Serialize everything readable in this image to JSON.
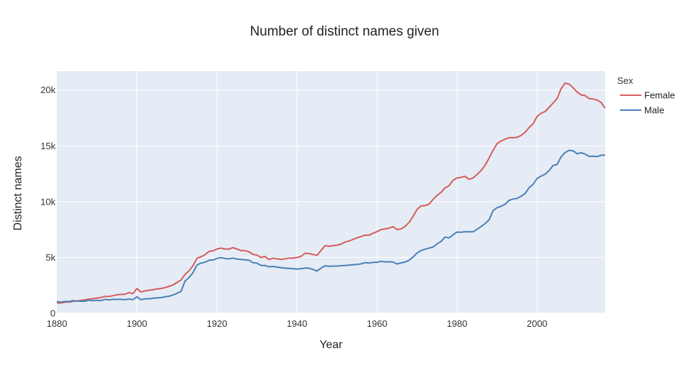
{
  "chart_data": {
    "type": "line",
    "title": "Number of distinct names given",
    "xlabel": "Year",
    "ylabel": "Distinct names",
    "xlim": [
      1880,
      2017
    ],
    "ylim": [
      0,
      21700
    ],
    "x_ticks": [
      1880,
      1900,
      1920,
      1940,
      1960,
      1980,
      2000
    ],
    "y_ticks": [
      {
        "value": 0,
        "label": "0"
      },
      {
        "value": 5000,
        "label": "5k"
      },
      {
        "value": 10000,
        "label": "10k"
      },
      {
        "value": 15000,
        "label": "15k"
      },
      {
        "value": 20000,
        "label": "20k"
      }
    ],
    "grid": true,
    "legend": {
      "title": "Sex",
      "position": "top-right"
    },
    "series": [
      {
        "name": "Female",
        "color": "#d55c5a",
        "points": [
          [
            1880,
            940
          ],
          [
            1881,
            920
          ],
          [
            1882,
            1000
          ],
          [
            1883,
            1000
          ],
          [
            1884,
            1070
          ],
          [
            1885,
            1100
          ],
          [
            1886,
            1160
          ],
          [
            1887,
            1200
          ],
          [
            1888,
            1270
          ],
          [
            1889,
            1310
          ],
          [
            1890,
            1370
          ],
          [
            1891,
            1420
          ],
          [
            1892,
            1510
          ],
          [
            1893,
            1510
          ],
          [
            1894,
            1580
          ],
          [
            1895,
            1660
          ],
          [
            1896,
            1690
          ],
          [
            1897,
            1710
          ],
          [
            1898,
            1850
          ],
          [
            1899,
            1760
          ],
          [
            1900,
            2220
          ],
          [
            1901,
            1900
          ],
          [
            1902,
            2010
          ],
          [
            1903,
            2060
          ],
          [
            1904,
            2120
          ],
          [
            1905,
            2180
          ],
          [
            1906,
            2220
          ],
          [
            1907,
            2300
          ],
          [
            1908,
            2420
          ],
          [
            1909,
            2540
          ],
          [
            1910,
            2760
          ],
          [
            1911,
            2980
          ],
          [
            1912,
            3470
          ],
          [
            1913,
            3800
          ],
          [
            1914,
            4250
          ],
          [
            1915,
            4940
          ],
          [
            1916,
            5060
          ],
          [
            1917,
            5250
          ],
          [
            1918,
            5540
          ],
          [
            1919,
            5600
          ],
          [
            1920,
            5760
          ],
          [
            1921,
            5840
          ],
          [
            1922,
            5760
          ],
          [
            1923,
            5760
          ],
          [
            1924,
            5880
          ],
          [
            1925,
            5760
          ],
          [
            1926,
            5620
          ],
          [
            1927,
            5620
          ],
          [
            1928,
            5510
          ],
          [
            1929,
            5280
          ],
          [
            1930,
            5220
          ],
          [
            1931,
            5000
          ],
          [
            1932,
            5100
          ],
          [
            1933,
            4820
          ],
          [
            1934,
            4940
          ],
          [
            1935,
            4890
          ],
          [
            1936,
            4830
          ],
          [
            1937,
            4890
          ],
          [
            1938,
            4950
          ],
          [
            1939,
            4940
          ],
          [
            1940,
            5000
          ],
          [
            1941,
            5100
          ],
          [
            1942,
            5380
          ],
          [
            1943,
            5350
          ],
          [
            1944,
            5260
          ],
          [
            1945,
            5200
          ],
          [
            1946,
            5620
          ],
          [
            1947,
            6060
          ],
          [
            1948,
            6010
          ],
          [
            1949,
            6060
          ],
          [
            1950,
            6100
          ],
          [
            1951,
            6200
          ],
          [
            1952,
            6380
          ],
          [
            1953,
            6480
          ],
          [
            1954,
            6620
          ],
          [
            1955,
            6760
          ],
          [
            1956,
            6880
          ],
          [
            1957,
            7000
          ],
          [
            1958,
            7000
          ],
          [
            1959,
            7170
          ],
          [
            1960,
            7310
          ],
          [
            1961,
            7500
          ],
          [
            1962,
            7560
          ],
          [
            1963,
            7630
          ],
          [
            1964,
            7760
          ],
          [
            1965,
            7500
          ],
          [
            1966,
            7560
          ],
          [
            1967,
            7790
          ],
          [
            1968,
            8130
          ],
          [
            1969,
            8680
          ],
          [
            1970,
            9300
          ],
          [
            1971,
            9620
          ],
          [
            1972,
            9650
          ],
          [
            1973,
            9780
          ],
          [
            1974,
            10200
          ],
          [
            1975,
            10550
          ],
          [
            1976,
            10840
          ],
          [
            1977,
            11240
          ],
          [
            1978,
            11420
          ],
          [
            1979,
            11920
          ],
          [
            1980,
            12120
          ],
          [
            1981,
            12180
          ],
          [
            1982,
            12270
          ],
          [
            1983,
            12000
          ],
          [
            1984,
            12120
          ],
          [
            1985,
            12440
          ],
          [
            1986,
            12780
          ],
          [
            1987,
            13260
          ],
          [
            1988,
            13900
          ],
          [
            1989,
            14590
          ],
          [
            1990,
            15200
          ],
          [
            1991,
            15430
          ],
          [
            1992,
            15590
          ],
          [
            1993,
            15740
          ],
          [
            1994,
            15720
          ],
          [
            1995,
            15760
          ],
          [
            1996,
            15930
          ],
          [
            1997,
            16210
          ],
          [
            1998,
            16640
          ],
          [
            1999,
            16970
          ],
          [
            2000,
            17630
          ],
          [
            2001,
            17920
          ],
          [
            2002,
            18070
          ],
          [
            2003,
            18440
          ],
          [
            2004,
            18830
          ],
          [
            2005,
            19230
          ],
          [
            2006,
            20120
          ],
          [
            2007,
            20620
          ],
          [
            2008,
            20520
          ],
          [
            2009,
            20210
          ],
          [
            2010,
            19830
          ],
          [
            2011,
            19560
          ],
          [
            2012,
            19500
          ],
          [
            2013,
            19240
          ],
          [
            2014,
            19190
          ],
          [
            2015,
            19110
          ],
          [
            2016,
            18880
          ],
          [
            2017,
            18380
          ]
        ]
      },
      {
        "name": "Male",
        "color": "#4b7fb4",
        "points": [
          [
            1880,
            1060
          ],
          [
            1881,
            1000
          ],
          [
            1882,
            1070
          ],
          [
            1883,
            1050
          ],
          [
            1884,
            1130
          ],
          [
            1885,
            1100
          ],
          [
            1886,
            1080
          ],
          [
            1887,
            1080
          ],
          [
            1888,
            1180
          ],
          [
            1889,
            1130
          ],
          [
            1890,
            1170
          ],
          [
            1891,
            1140
          ],
          [
            1892,
            1250
          ],
          [
            1893,
            1200
          ],
          [
            1894,
            1250
          ],
          [
            1895,
            1250
          ],
          [
            1896,
            1250
          ],
          [
            1897,
            1230
          ],
          [
            1898,
            1280
          ],
          [
            1899,
            1220
          ],
          [
            1900,
            1480
          ],
          [
            1901,
            1220
          ],
          [
            1902,
            1300
          ],
          [
            1903,
            1300
          ],
          [
            1904,
            1350
          ],
          [
            1905,
            1380
          ],
          [
            1906,
            1400
          ],
          [
            1907,
            1490
          ],
          [
            1908,
            1530
          ],
          [
            1909,
            1640
          ],
          [
            1910,
            1790
          ],
          [
            1911,
            1960
          ],
          [
            1912,
            2870
          ],
          [
            1913,
            3200
          ],
          [
            1914,
            3620
          ],
          [
            1915,
            4320
          ],
          [
            1916,
            4500
          ],
          [
            1917,
            4570
          ],
          [
            1918,
            4760
          ],
          [
            1919,
            4770
          ],
          [
            1920,
            4920
          ],
          [
            1921,
            4980
          ],
          [
            1922,
            4920
          ],
          [
            1923,
            4880
          ],
          [
            1924,
            4950
          ],
          [
            1925,
            4860
          ],
          [
            1926,
            4830
          ],
          [
            1927,
            4800
          ],
          [
            1928,
            4760
          ],
          [
            1929,
            4530
          ],
          [
            1930,
            4500
          ],
          [
            1931,
            4290
          ],
          [
            1932,
            4290
          ],
          [
            1933,
            4170
          ],
          [
            1934,
            4200
          ],
          [
            1935,
            4140
          ],
          [
            1936,
            4090
          ],
          [
            1937,
            4050
          ],
          [
            1938,
            4030
          ],
          [
            1939,
            4000
          ],
          [
            1940,
            3960
          ],
          [
            1941,
            4000
          ],
          [
            1942,
            4050
          ],
          [
            1943,
            4050
          ],
          [
            1944,
            3930
          ],
          [
            1945,
            3780
          ],
          [
            1946,
            4050
          ],
          [
            1947,
            4260
          ],
          [
            1948,
            4210
          ],
          [
            1949,
            4230
          ],
          [
            1950,
            4230
          ],
          [
            1951,
            4270
          ],
          [
            1952,
            4280
          ],
          [
            1953,
            4320
          ],
          [
            1954,
            4350
          ],
          [
            1955,
            4370
          ],
          [
            1956,
            4430
          ],
          [
            1957,
            4540
          ],
          [
            1958,
            4500
          ],
          [
            1959,
            4560
          ],
          [
            1960,
            4570
          ],
          [
            1961,
            4650
          ],
          [
            1962,
            4610
          ],
          [
            1963,
            4620
          ],
          [
            1964,
            4590
          ],
          [
            1965,
            4420
          ],
          [
            1966,
            4520
          ],
          [
            1967,
            4590
          ],
          [
            1968,
            4750
          ],
          [
            1969,
            5040
          ],
          [
            1970,
            5400
          ],
          [
            1971,
            5620
          ],
          [
            1972,
            5740
          ],
          [
            1973,
            5840
          ],
          [
            1974,
            5940
          ],
          [
            1975,
            6220
          ],
          [
            1976,
            6440
          ],
          [
            1977,
            6830
          ],
          [
            1978,
            6760
          ],
          [
            1979,
            7030
          ],
          [
            1980,
            7280
          ],
          [
            1981,
            7260
          ],
          [
            1982,
            7310
          ],
          [
            1983,
            7300
          ],
          [
            1984,
            7300
          ],
          [
            1985,
            7530
          ],
          [
            1986,
            7770
          ],
          [
            1987,
            8040
          ],
          [
            1988,
            8370
          ],
          [
            1989,
            9190
          ],
          [
            1990,
            9460
          ],
          [
            1991,
            9590
          ],
          [
            1992,
            9770
          ],
          [
            1993,
            10120
          ],
          [
            1994,
            10230
          ],
          [
            1995,
            10290
          ],
          [
            1996,
            10480
          ],
          [
            1997,
            10720
          ],
          [
            1998,
            11250
          ],
          [
            1999,
            11550
          ],
          [
            2000,
            12080
          ],
          [
            2001,
            12290
          ],
          [
            2002,
            12460
          ],
          [
            2003,
            12770
          ],
          [
            2004,
            13240
          ],
          [
            2005,
            13330
          ],
          [
            2006,
            14010
          ],
          [
            2007,
            14400
          ],
          [
            2008,
            14600
          ],
          [
            2009,
            14560
          ],
          [
            2010,
            14290
          ],
          [
            2011,
            14380
          ],
          [
            2012,
            14270
          ],
          [
            2013,
            14060
          ],
          [
            2014,
            14070
          ],
          [
            2015,
            14040
          ],
          [
            2016,
            14160
          ],
          [
            2017,
            14170
          ]
        ]
      }
    ]
  }
}
